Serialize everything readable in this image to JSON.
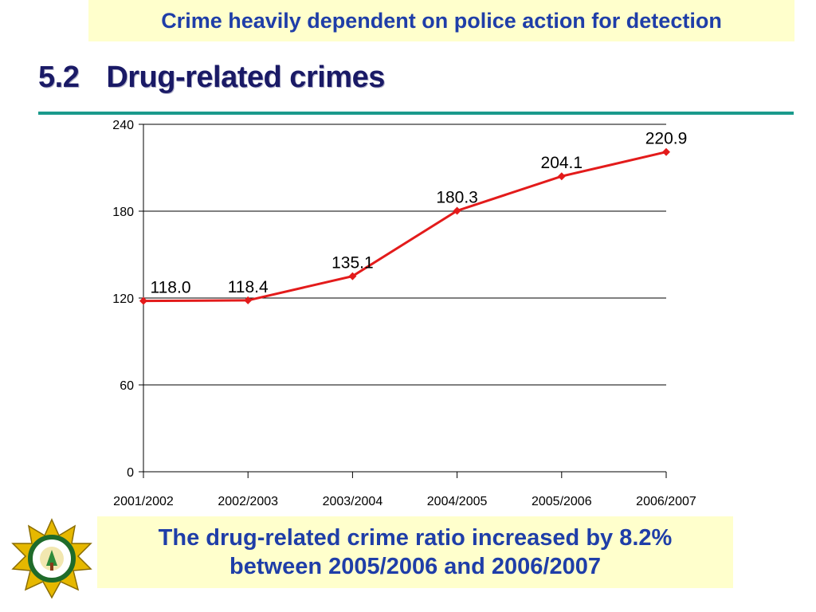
{
  "header": {
    "banner_text": "Crime heavily dependent on police action for detection",
    "section_number": "5.2",
    "section_title": "Drug-related crimes"
  },
  "footer": {
    "note_line1": "The drug-related crime ratio increased by 8.2%",
    "note_line2": "between 2005/2006 and 2006/2007"
  },
  "logo": {
    "icon": "police-star-badge-icon"
  },
  "colors": {
    "banner_bg": "#ffffcc",
    "banner_text": "#1f3ea8",
    "title_text": "#1a1a66",
    "rule": "#1a9a8c",
    "series_line": "#e31b1b"
  },
  "chart_data": {
    "type": "line",
    "categories": [
      "2001/2002",
      "2002/2003",
      "2003/2004",
      "2004/2005",
      "2005/2006",
      "2006/2007"
    ],
    "series": [
      {
        "values": [
          118.0,
          118.4,
          135.1,
          180.3,
          204.1,
          220.9
        ],
        "labels": [
          "118.0",
          "118.4",
          "135.1",
          "180.3",
          "204.1",
          "220.9"
        ]
      }
    ],
    "ylim": [
      0,
      240
    ],
    "yticks": [
      0,
      60,
      120,
      180,
      240
    ],
    "grid": true,
    "legend": "none",
    "marker": "diamond"
  }
}
